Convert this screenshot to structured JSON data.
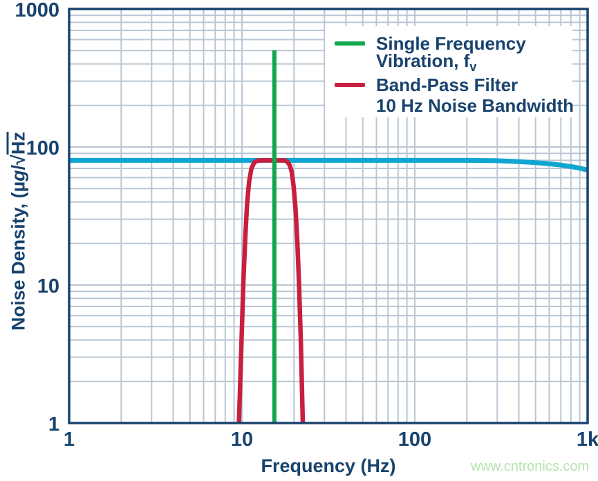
{
  "watermark": {
    "text": "www.cntronics.com",
    "color": "#b6e3ae"
  },
  "chart_data": {
    "type": "line",
    "title": "",
    "xlabel": "Frequency (Hz)",
    "ylabel": "Noise Density, (µg/√Hz",
    "ylabel_parts": {
      "prefix": "Noise Density, (µ",
      "g": "g",
      "slash": "/",
      "radical": "√",
      "overline": "Hz"
    },
    "x_scale": "log",
    "y_scale": "log",
    "xlim": [
      1,
      1000
    ],
    "ylim": [
      1,
      1000
    ],
    "x_ticks": [
      {
        "value": 1,
        "label": "1"
      },
      {
        "value": 10,
        "label": "10"
      },
      {
        "value": 100,
        "label": "100"
      },
      {
        "value": 1000,
        "label": "1k"
      }
    ],
    "y_ticks": [
      {
        "value": 1000,
        "label": "1000"
      },
      {
        "value": 100,
        "label": "100"
      },
      {
        "value": 10,
        "label": "10"
      },
      {
        "value": 1,
        "label": "1"
      }
    ],
    "grid": {
      "minor": true,
      "color": "#b9c6d4"
    },
    "axis_color": "#18436e",
    "series": [
      {
        "name": "noise-density-curve",
        "color": "#10a6d1",
        "width": 7,
        "points": [
          [
            1,
            80
          ],
          [
            100,
            80
          ],
          [
            200,
            80
          ],
          [
            250,
            79.8
          ],
          [
            300,
            79.5
          ],
          [
            350,
            79
          ],
          [
            400,
            78.3
          ],
          [
            500,
            77
          ],
          [
            600,
            75.5
          ],
          [
            700,
            74
          ],
          [
            800,
            72.2
          ],
          [
            900,
            70.2
          ],
          [
            1000,
            68
          ]
        ]
      },
      {
        "name": "band-pass-filter",
        "color": "#c81f3e",
        "width": 6.5,
        "points": [
          [
            9.6,
            1
          ],
          [
            9.8,
            2.2
          ],
          [
            10.0,
            5
          ],
          [
            10.2,
            11
          ],
          [
            10.45,
            22
          ],
          [
            10.7,
            38
          ],
          [
            11.0,
            56
          ],
          [
            11.35,
            70
          ],
          [
            11.8,
            77.5
          ],
          [
            12.3,
            79.6
          ],
          [
            13,
            80
          ],
          [
            17,
            80
          ],
          [
            17.8,
            79.6
          ],
          [
            18.3,
            78
          ],
          [
            18.9,
            74
          ],
          [
            19.4,
            66
          ],
          [
            19.9,
            52
          ],
          [
            20.4,
            36
          ],
          [
            20.9,
            21
          ],
          [
            21.4,
            10
          ],
          [
            21.9,
            4
          ],
          [
            22.5,
            1
          ]
        ]
      },
      {
        "name": "single-frequency-vibration",
        "color": "#12a74d",
        "width": 6,
        "points": [
          [
            15.4,
            1
          ],
          [
            15.4,
            501
          ]
        ]
      }
    ],
    "legend": {
      "position": "top-right",
      "items": [
        {
          "color": "#12a74d",
          "line1": "Single Frequency",
          "line2": "Vibration, f",
          "line2_sub": "v"
        },
        {
          "color": "#c81f3e",
          "line1": "Band-Pass Filter",
          "line2": "10 Hz Noise Bandwidth",
          "line2_sub": ""
        }
      ]
    }
  }
}
